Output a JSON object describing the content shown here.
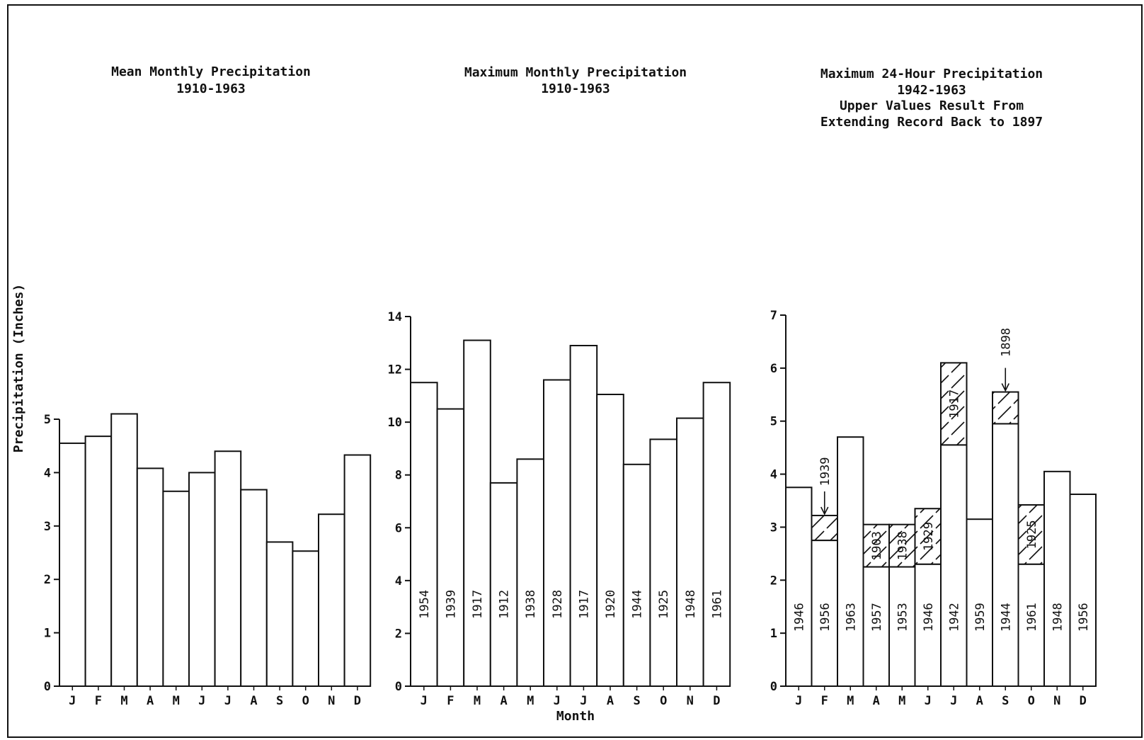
{
  "chart_data": [
    {
      "type": "bar",
      "title": "Mean Monthly Precipitation",
      "subtitle": "1910-1963",
      "ylabel": "Precipitation (Inches)",
      "xlabel": "",
      "ylim": [
        0,
        5
      ],
      "yticks": [
        0,
        1,
        2,
        3,
        4,
        5
      ],
      "categories": [
        "J",
        "F",
        "M",
        "A",
        "M",
        "J",
        "J",
        "A",
        "S",
        "O",
        "N",
        "D"
      ],
      "values": [
        4.55,
        4.68,
        5.1,
        4.08,
        3.65,
        4.0,
        4.4,
        3.68,
        2.7,
        2.53,
        3.22,
        4.33
      ]
    },
    {
      "type": "bar",
      "title": "Maximum Monthly Precipitation",
      "subtitle": "1910-1963",
      "xlabel": "Month",
      "ylabel": "",
      "ylim": [
        0,
        14
      ],
      "yticks": [
        0,
        2,
        4,
        6,
        8,
        10,
        12,
        14
      ],
      "categories": [
        "J",
        "F",
        "M",
        "A",
        "M",
        "J",
        "J",
        "A",
        "S",
        "O",
        "N",
        "D"
      ],
      "values": [
        11.5,
        10.5,
        13.1,
        7.7,
        8.6,
        11.6,
        12.9,
        11.05,
        8.4,
        9.35,
        10.15,
        11.5
      ],
      "years": [
        "1954",
        "1939",
        "1917",
        "1912",
        "1938",
        "1928",
        "1917",
        "1920",
        "1944",
        "1925",
        "1948",
        "1961"
      ]
    },
    {
      "type": "bar",
      "title": "Maximum 24-Hour Precipitation",
      "subtitle": "1942-1963",
      "subtitle2": "Upper Values Result From",
      "subtitle3": "Extending Record Back to 1897",
      "xlabel": "",
      "ylabel": "",
      "ylim": [
        0,
        7
      ],
      "yticks": [
        0,
        1,
        2,
        3,
        4,
        5,
        6,
        7
      ],
      "categories": [
        "J",
        "F",
        "M",
        "A",
        "M",
        "J",
        "J",
        "A",
        "S",
        "O",
        "N",
        "D"
      ],
      "series": [
        {
          "values": [
            3.75,
            2.75,
            4.7,
            2.25,
            2.25,
            2.3,
            4.55,
            3.15,
            4.95,
            2.3,
            4.05,
            3.62
          ],
          "years": [
            "1946",
            "1956",
            "1963",
            "1957",
            "1953",
            "1946",
            "1942",
            "1959",
            "1944",
            "1961",
            "1948",
            "1956"
          ]
        },
        {
          "values": [
            null,
            3.22,
            null,
            3.05,
            3.05,
            3.35,
            6.1,
            null,
            5.55,
            3.42,
            null,
            null
          ],
          "years": [
            "",
            "1939",
            "",
            "1903",
            "1938",
            "1929",
            "1917",
            "",
            "1898",
            "1925",
            "",
            ""
          ]
        }
      ]
    }
  ]
}
